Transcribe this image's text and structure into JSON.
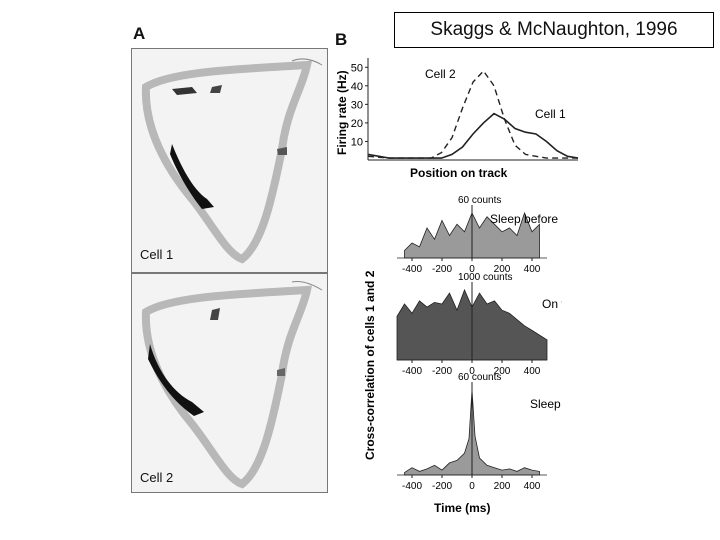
{
  "citation": "Skaggs & McNaughton, 1996",
  "panel_a": {
    "letter": "A",
    "cells": [
      {
        "label": "Cell 1"
      },
      {
        "label": "Cell 2"
      }
    ]
  },
  "panel_b": {
    "letter": "B",
    "firing_rate": {
      "ylabel": "Firing rate (Hz)",
      "xlabel": "Position on track",
      "yticks": [
        "10",
        "20",
        "30",
        "40",
        "50"
      ],
      "series_labels": {
        "cell2": "Cell 2",
        "cell1": "Cell 1"
      }
    },
    "cross_correlation": {
      "ylabel": "Cross-correlation of cells 1 and 2",
      "xlabel": "Time (ms)",
      "xticks": [
        "-400",
        "-200",
        "0",
        "200",
        "400"
      ],
      "panels": [
        {
          "name": "Sleep before",
          "scale": "60 counts"
        },
        {
          "name": "On track",
          "scale": "1000 counts"
        },
        {
          "name": "Sleep after",
          "scale": "60 counts"
        }
      ]
    }
  },
  "chart_data": [
    {
      "type": "line",
      "title": "",
      "xlabel": "Position on track",
      "ylabel": "Firing rate (Hz)",
      "ylim": [
        0,
        55
      ],
      "x": [
        0,
        0.1,
        0.2,
        0.3,
        0.35,
        0.4,
        0.45,
        0.5,
        0.55,
        0.6,
        0.65,
        0.7,
        0.75,
        0.8,
        0.85,
        0.9,
        0.95,
        1.0
      ],
      "series": [
        {
          "name": "Cell 2",
          "style": "dashed",
          "values": [
            2,
            1,
            1,
            1,
            4,
            12,
            28,
            42,
            48,
            40,
            22,
            8,
            3,
            2,
            1,
            1,
            1,
            1
          ]
        },
        {
          "name": "Cell 1",
          "style": "solid",
          "values": [
            3,
            1,
            1,
            1,
            1,
            3,
            7,
            14,
            20,
            25,
            22,
            17,
            15,
            14,
            10,
            5,
            2,
            1
          ]
        }
      ]
    },
    {
      "type": "area",
      "title": "Sleep before",
      "xlabel": "Time (ms)",
      "scale_bar": "60 counts",
      "x": [
        -450,
        -400,
        -350,
        -300,
        -250,
        -200,
        -150,
        -100,
        -50,
        0,
        50,
        100,
        150,
        200,
        250,
        300,
        350,
        400,
        450
      ],
      "values": [
        2,
        4,
        3,
        8,
        5,
        10,
        6,
        9,
        7,
        12,
        8,
        11,
        9,
        7,
        8,
        6,
        12,
        7,
        9
      ]
    },
    {
      "type": "area",
      "title": "On track",
      "xlabel": "Time (ms)",
      "scale_bar": "1000 counts",
      "x": [
        -500,
        -450,
        -400,
        -350,
        -300,
        -250,
        -200,
        -150,
        -100,
        -50,
        0,
        50,
        100,
        150,
        200,
        250,
        300,
        350,
        400,
        450,
        500
      ],
      "values": [
        560,
        720,
        600,
        760,
        680,
        740,
        720,
        860,
        640,
        900,
        680,
        860,
        720,
        760,
        640,
        600,
        520,
        440,
        380,
        320,
        260
      ]
    },
    {
      "type": "area",
      "title": "Sleep after",
      "xlabel": "Time (ms)",
      "scale_bar": "60 counts",
      "x": [
        -450,
        -400,
        -350,
        -300,
        -250,
        -200,
        -150,
        -100,
        -50,
        -20,
        0,
        20,
        50,
        100,
        150,
        200,
        250,
        300,
        350,
        400,
        450
      ],
      "values": [
        2,
        6,
        3,
        5,
        8,
        4,
        10,
        12,
        18,
        30,
        70,
        32,
        14,
        8,
        6,
        4,
        5,
        3,
        6,
        4,
        3
      ]
    }
  ]
}
